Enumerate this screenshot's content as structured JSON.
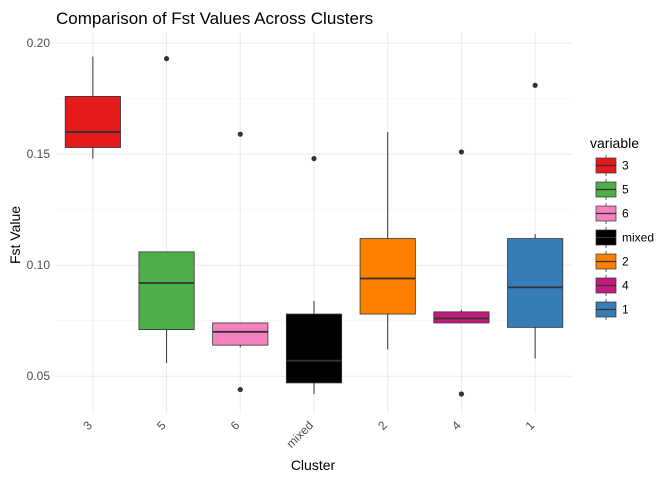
{
  "chart_data": {
    "type": "box",
    "title": "Comparison of Fst Values Across Clusters",
    "xlabel": "Cluster",
    "ylabel": "Fst Value",
    "ylim": [
      0.033,
      0.205
    ],
    "yticks": [
      0.05,
      0.1,
      0.15,
      0.2
    ],
    "ytick_labels": [
      "0.05",
      "0.10",
      "0.15",
      "0.20"
    ],
    "grid": true,
    "legend_position": "right",
    "legend_title": "variable",
    "categories": [
      "3",
      "5",
      "6",
      "mixed",
      "2",
      "4",
      "1"
    ],
    "series": [
      {
        "name": "3",
        "color": "#e41a1c",
        "whisker_low": 0.148,
        "q1": 0.153,
        "median": 0.16,
        "q3": 0.176,
        "whisker_high": 0.194,
        "outliers": []
      },
      {
        "name": "5",
        "color": "#4daf4a",
        "whisker_low": 0.056,
        "q1": 0.071,
        "median": 0.092,
        "q3": 0.106,
        "whisker_high": 0.106,
        "outliers": [
          0.193
        ]
      },
      {
        "name": "6",
        "color": "#f781bf",
        "whisker_low": 0.063,
        "q1": 0.064,
        "median": 0.07,
        "q3": 0.074,
        "whisker_high": 0.074,
        "outliers": [
          0.159,
          0.044
        ]
      },
      {
        "name": "mixed",
        "color": "#000000",
        "whisker_low": 0.042,
        "q1": 0.047,
        "median": 0.057,
        "q3": 0.078,
        "whisker_high": 0.084,
        "outliers": [
          0.148
        ]
      },
      {
        "name": "2",
        "color": "#ff7f00",
        "whisker_low": 0.062,
        "q1": 0.078,
        "median": 0.094,
        "q3": 0.112,
        "whisker_high": 0.16,
        "outliers": []
      },
      {
        "name": "4",
        "color": "#c51b7d",
        "whisker_low": 0.074,
        "q1": 0.074,
        "median": 0.076,
        "q3": 0.079,
        "whisker_high": 0.08,
        "outliers": [
          0.151,
          0.042
        ]
      },
      {
        "name": "1",
        "color": "#377eb8",
        "whisker_low": 0.058,
        "q1": 0.072,
        "median": 0.09,
        "q3": 0.112,
        "whisker_high": 0.114,
        "outliers": [
          0.181
        ]
      }
    ],
    "legend_order": [
      "3",
      "5",
      "6",
      "mixed",
      "2",
      "4",
      "1"
    ]
  }
}
